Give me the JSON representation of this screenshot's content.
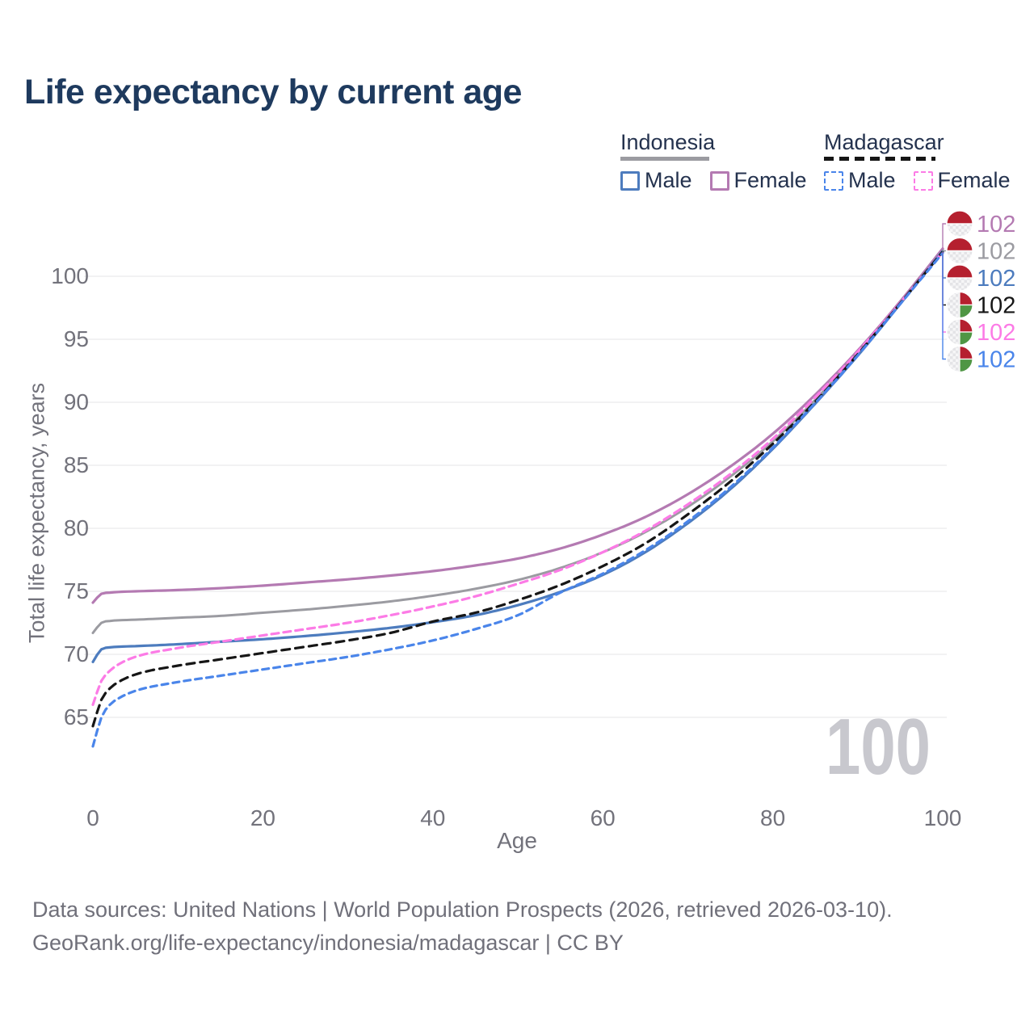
{
  "title": "Life expectancy by current age",
  "watermark_age": "100",
  "legend": {
    "groups": [
      {
        "name": "Indonesia",
        "underline_style": "solid",
        "underline_color": "#9b9ba1",
        "underline_width": 110,
        "items": [
          {
            "label": "Male",
            "series": "indonesia-male"
          },
          {
            "label": "Female",
            "series": "indonesia-female"
          }
        ]
      },
      {
        "name": "Madagascar",
        "underline_style": "dashed",
        "underline_color": "#161616",
        "underline_width": 138,
        "items": [
          {
            "label": "Male",
            "series": "madagascar-male"
          },
          {
            "label": "Female",
            "series": "madagascar-female"
          }
        ]
      }
    ]
  },
  "axes": {
    "x": {
      "label": "Age",
      "ticks": [
        0,
        20,
        40,
        60,
        80,
        100
      ],
      "range": [
        0,
        100
      ]
    },
    "y": {
      "label": "Total life expectancy, years",
      "ticks": [
        65,
        70,
        75,
        80,
        85,
        90,
        95,
        100
      ]
    }
  },
  "footer": {
    "line1": "Data sources: United Nations | World Population Prospects (2026, retrieved 2026-03-10).",
    "line2": "GeoRank.org/life-expectancy/indonesia/madagascar | CC BY"
  },
  "colors": {
    "title_text": "#1e3a5e",
    "legend_text": "#24324e",
    "axis_text": "#72727b",
    "gridline": "#e9e9ec",
    "watermark": "#c8c8ce",
    "flag_red": "#b5202f",
    "flag_green": "#4f9644",
    "flag_light": "#f6f6f7"
  },
  "chart_data": {
    "type": "line",
    "title": "Life expectancy by current age",
    "xlabel": "Age",
    "ylabel": "Total life expectancy, years",
    "xlim": [
      0,
      100
    ],
    "ylim": [
      62,
      103
    ],
    "grid": "horizontal",
    "x_ages": [
      0,
      1,
      2,
      3,
      5,
      10,
      15,
      20,
      25,
      30,
      35,
      40,
      45,
      50,
      55,
      60,
      65,
      70,
      75,
      80,
      85,
      90,
      95,
      100
    ],
    "series": [
      {
        "id": "indonesia-female",
        "country": "Indonesia",
        "sex": "Female",
        "color": "#b47ab2",
        "dash": null,
        "width": 3.2,
        "end_label": "102",
        "flag": "indonesia",
        "values": [
          74.1,
          74.8,
          74.9,
          74.95,
          75.0,
          75.1,
          75.25,
          75.45,
          75.7,
          75.95,
          76.25,
          76.6,
          77.05,
          77.6,
          78.4,
          79.5,
          80.9,
          82.7,
          84.9,
          87.5,
          90.6,
          94.1,
          98.0,
          102.2
        ]
      },
      {
        "id": "indonesia-overall",
        "country": "Indonesia",
        "sex": "Both",
        "color": "#9b9ba1",
        "dash": null,
        "width": 3.0,
        "end_label": "102",
        "flag": "indonesia",
        "values": [
          71.7,
          72.5,
          72.65,
          72.7,
          72.75,
          72.9,
          73.05,
          73.3,
          73.55,
          73.85,
          74.2,
          74.65,
          75.2,
          75.9,
          76.85,
          78.1,
          79.7,
          81.7,
          84.1,
          86.9,
          90.2,
          93.9,
          97.9,
          102.1
        ]
      },
      {
        "id": "indonesia-male",
        "country": "Indonesia",
        "sex": "Male",
        "color": "#4d7cbe",
        "dash": null,
        "width": 3.2,
        "end_label": "102",
        "flag": "indonesia",
        "values": [
          69.4,
          70.4,
          70.55,
          70.6,
          70.65,
          70.8,
          71.0,
          71.2,
          71.45,
          71.75,
          72.1,
          72.55,
          73.1,
          73.9,
          74.95,
          76.3,
          78.1,
          80.4,
          83.1,
          86.3,
          89.9,
          93.7,
          97.8,
          102.0
        ]
      },
      {
        "id": "madagascar-overall",
        "country": "Madagascar",
        "sex": "Both",
        "color": "#161616",
        "dash": [
          10,
          7
        ],
        "width": 3.2,
        "end_label": "102",
        "flag": "madagascar",
        "values": [
          64.3,
          66.4,
          67.3,
          67.8,
          68.4,
          69.1,
          69.6,
          70.1,
          70.6,
          71.1,
          71.7,
          72.6,
          73.3,
          74.3,
          75.5,
          77.0,
          78.8,
          81.1,
          83.7,
          86.7,
          90.05,
          93.8,
          97.85,
          101.95
        ]
      },
      {
        "id": "madagascar-female",
        "country": "Madagascar",
        "sex": "Female",
        "color": "#fc7be6",
        "dash": [
          9,
          6
        ],
        "width": 3.2,
        "end_label": "102",
        "flag": "madagascar",
        "values": [
          66.0,
          67.9,
          68.7,
          69.2,
          69.8,
          70.5,
          71.0,
          71.5,
          72.0,
          72.5,
          73.1,
          73.8,
          74.6,
          75.6,
          76.7,
          78.1,
          79.8,
          81.9,
          84.3,
          87.1,
          90.4,
          94.0,
          97.9,
          101.9
        ]
      },
      {
        "id": "madagascar-male",
        "country": "Madagascar",
        "sex": "Male",
        "color": "#4a85ea",
        "dash": [
          8,
          6
        ],
        "width": 3.2,
        "end_label": "102",
        "flag": "madagascar",
        "values": [
          62.7,
          65.0,
          66.0,
          66.5,
          67.1,
          67.8,
          68.3,
          68.8,
          69.3,
          69.8,
          70.4,
          71.1,
          72.0,
          73.1,
          74.9,
          76.4,
          78.25,
          80.55,
          83.25,
          86.4,
          89.95,
          93.72,
          97.8,
          101.85
        ]
      }
    ],
    "draw_order": [
      1,
      0,
      2,
      4,
      3,
      5
    ],
    "end_label_rows_y": [
      277,
      310.5,
      344,
      377.5,
      411,
      444.5
    ]
  }
}
